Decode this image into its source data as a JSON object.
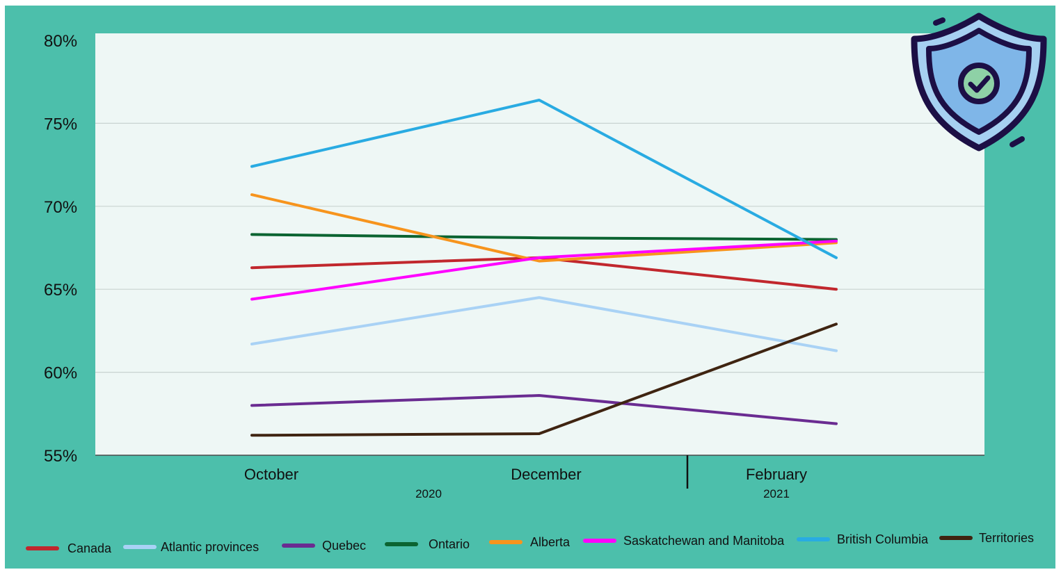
{
  "chart_data": {
    "type": "line",
    "title": "",
    "xlabel": "",
    "ylabel": "",
    "categories": [
      "October",
      "December",
      "February"
    ],
    "year_labels": [
      "2020",
      "2021"
    ],
    "y_ticks": [
      "80%",
      "75%",
      "70%",
      "65%",
      "60%",
      "55%"
    ],
    "ylim": [
      55,
      80
    ],
    "grid": true,
    "legend_position": "bottom",
    "series": [
      {
        "name": "Canada",
        "color": "#c1272d",
        "values": [
          66.3,
          66.9,
          65.0
        ]
      },
      {
        "name": "Atlantic provinces",
        "color": "#a9d2f5",
        "values": [
          61.7,
          64.5,
          61.3
        ]
      },
      {
        "name": "Quebec",
        "color": "#6a2c91",
        "values": [
          58.0,
          58.6,
          56.9
        ]
      },
      {
        "name": "Ontario",
        "color": "#0b6431",
        "values": [
          68.3,
          68.1,
          68.0
        ]
      },
      {
        "name": "Alberta",
        "color": "#f7941d",
        "values": [
          70.7,
          66.7,
          67.8
        ]
      },
      {
        "name": "Saskatchewan and Manitoba",
        "color": "#ff00ff",
        "values": [
          64.4,
          66.9,
          67.9
        ]
      },
      {
        "name": "British Columbia",
        "color": "#29abe2",
        "values": [
          72.4,
          76.4,
          66.9
        ]
      },
      {
        "name": "Territories",
        "color": "#3f2411",
        "values": [
          56.2,
          56.3,
          62.9
        ]
      }
    ]
  },
  "colors": {
    "background": "#4cbfab",
    "plot_background": "#eef7f5",
    "gridline": "#c8d3d0"
  },
  "icon": "shield-check-icon"
}
